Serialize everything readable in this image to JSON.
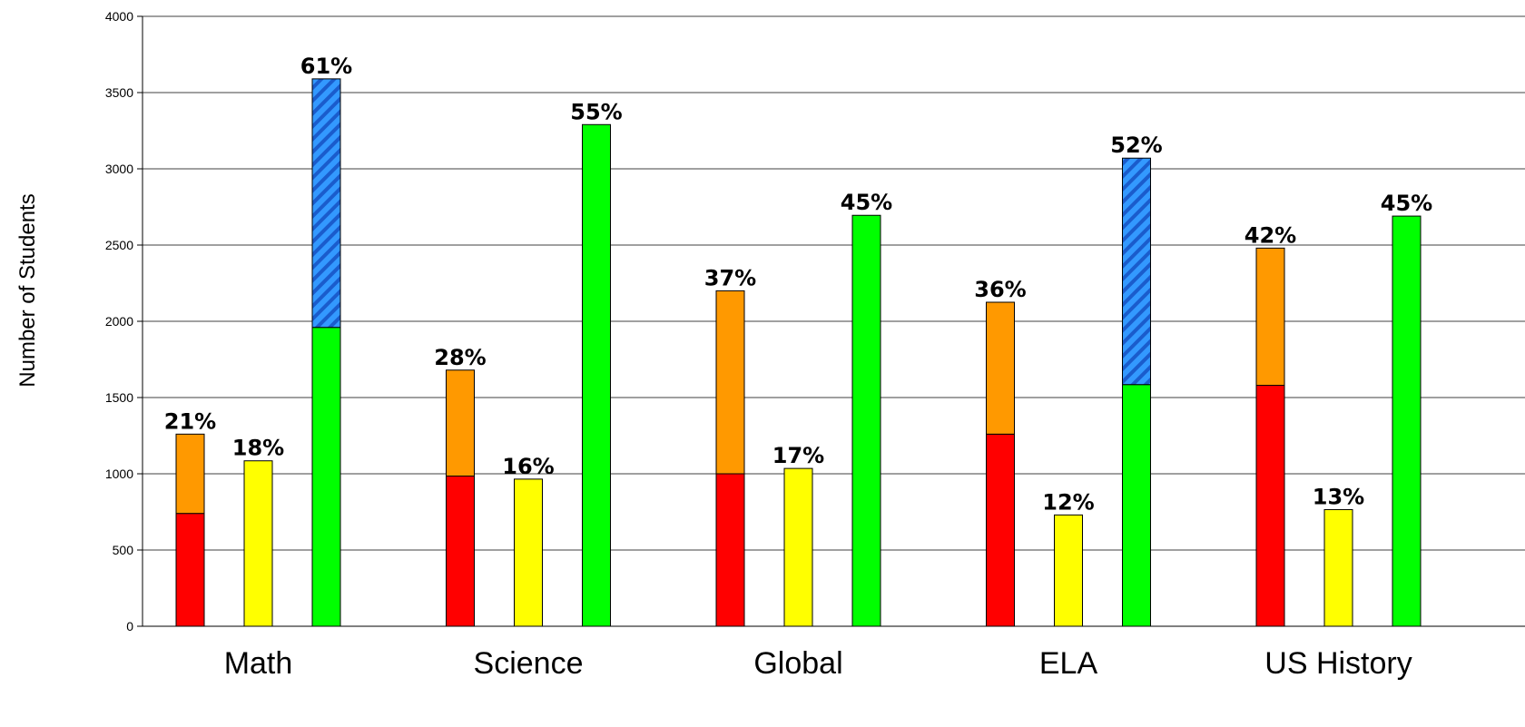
{
  "chart_data": {
    "type": "bar",
    "ylabel": "Number of Students",
    "xlabel": "",
    "ylim": [
      0,
      4000
    ],
    "yticks": [
      0,
      500,
      1000,
      1500,
      2000,
      2500,
      3000,
      3500,
      4000
    ],
    "grid": true,
    "categories": [
      "Math",
      "Science",
      "Global",
      "ELA",
      "US History"
    ],
    "colors": {
      "red": "#ff0000",
      "orange": "#ff9900",
      "yellow": "#ffff00",
      "green": "#00ff00",
      "blue_hatch": "#3399ff",
      "blue_hatch_stripe": "#1a5ccc"
    },
    "groups": [
      {
        "category": "Math",
        "bars": [
          {
            "segments": [
              {
                "value": 740,
                "color": "red"
              },
              {
                "value": 520,
                "color": "orange"
              }
            ],
            "label": "21%"
          },
          {
            "segments": [
              {
                "value": 1085,
                "color": "yellow"
              }
            ],
            "label": "18%"
          },
          {
            "segments": [
              {
                "value": 1960,
                "color": "green"
              },
              {
                "value": 1630,
                "color": "blue_hatch"
              }
            ],
            "label": "61%"
          }
        ]
      },
      {
        "category": "Science",
        "bars": [
          {
            "segments": [
              {
                "value": 985,
                "color": "red"
              },
              {
                "value": 695,
                "color": "orange"
              }
            ],
            "label": "28%"
          },
          {
            "segments": [
              {
                "value": 965,
                "color": "yellow"
              }
            ],
            "label": "16%"
          },
          {
            "segments": [
              {
                "value": 3290,
                "color": "green"
              }
            ],
            "label": "55%"
          }
        ]
      },
      {
        "category": "Global",
        "bars": [
          {
            "segments": [
              {
                "value": 1000,
                "color": "red"
              },
              {
                "value": 1200,
                "color": "orange"
              }
            ],
            "label": "37%"
          },
          {
            "segments": [
              {
                "value": 1035,
                "color": "yellow"
              }
            ],
            "label": "17%"
          },
          {
            "segments": [
              {
                "value": 2695,
                "color": "green"
              }
            ],
            "label": "45%"
          }
        ]
      },
      {
        "category": "ELA",
        "bars": [
          {
            "segments": [
              {
                "value": 1260,
                "color": "red"
              },
              {
                "value": 865,
                "color": "orange"
              }
            ],
            "label": "36%"
          },
          {
            "segments": [
              {
                "value": 730,
                "color": "yellow"
              }
            ],
            "label": "12%"
          },
          {
            "segments": [
              {
                "value": 1585,
                "color": "green"
              },
              {
                "value": 1485,
                "color": "blue_hatch"
              }
            ],
            "label": "52%"
          }
        ]
      },
      {
        "category": "US History",
        "bars": [
          {
            "segments": [
              {
                "value": 1580,
                "color": "red"
              },
              {
                "value": 900,
                "color": "orange"
              }
            ],
            "label": "42%"
          },
          {
            "segments": [
              {
                "value": 765,
                "color": "yellow"
              }
            ],
            "label": "13%"
          },
          {
            "segments": [
              {
                "value": 2690,
                "color": "green"
              }
            ],
            "label": "45%"
          }
        ]
      }
    ]
  }
}
